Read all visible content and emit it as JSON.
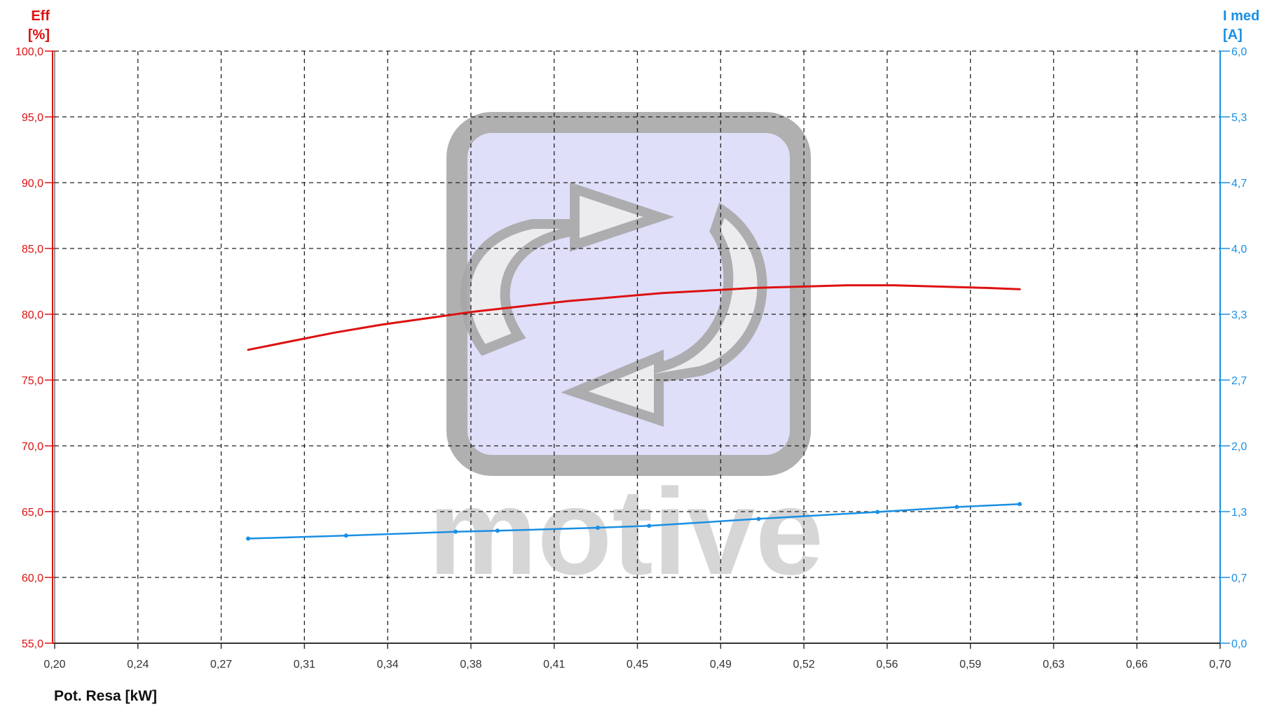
{
  "colors": {
    "eff": "#dd1111",
    "imed": "#1a8fe3",
    "grid": "#222222",
    "logo_fill": "#dcdcfa",
    "logo_stroke": "#aaaaaa"
  },
  "watermark": {
    "text": "motive"
  },
  "chart_data": {
    "type": "line",
    "x_axis": {
      "label": "Pot. Resa [kW]",
      "range": [
        0.2,
        0.7
      ],
      "ticks": [
        "0,20",
        "0,24",
        "0,27",
        "0,31",
        "0,34",
        "0,38",
        "0,41",
        "0,45",
        "0,49",
        "0,52",
        "0,56",
        "0,59",
        "0,63",
        "0,66",
        "0,70"
      ]
    },
    "y_left": {
      "label_line1": "Eff",
      "label_line2": "[%]",
      "range": [
        55.0,
        100.0
      ],
      "ticks": [
        "55,0",
        "60,0",
        "65,0",
        "70,0",
        "75,0",
        "80,0",
        "85,0",
        "90,0",
        "95,0",
        "100,0"
      ]
    },
    "y_right": {
      "label_line1": "I med",
      "label_line2": "[A]",
      "range": [
        0.0,
        6.0
      ],
      "ticks": [
        "0,0",
        "0,7",
        "1,3",
        "2,0",
        "2,7",
        "3,3",
        "4,0",
        "4,7",
        "5,3",
        "6,0"
      ]
    },
    "grid": true,
    "series": [
      {
        "axis": "left",
        "markers": false,
        "x": [
          0.283,
          0.3,
          0.32,
          0.34,
          0.36,
          0.38,
          0.4,
          0.42,
          0.44,
          0.46,
          0.48,
          0.5,
          0.52,
          0.54,
          0.56,
          0.58,
          0.6,
          0.614
        ],
        "y": [
          77.3,
          77.9,
          78.6,
          79.2,
          79.7,
          80.2,
          80.6,
          81.0,
          81.3,
          81.6,
          81.8,
          82.0,
          82.1,
          82.2,
          82.2,
          82.1,
          82.0,
          81.9
        ]
      },
      {
        "axis": "right",
        "markers": true,
        "x": [
          0.283,
          0.325,
          0.372,
          0.39,
          0.433,
          0.455,
          0.502,
          0.553,
          0.587,
          0.614
        ],
        "y": [
          1.06,
          1.09,
          1.13,
          1.14,
          1.17,
          1.19,
          1.26,
          1.33,
          1.38,
          1.41
        ]
      }
    ]
  }
}
